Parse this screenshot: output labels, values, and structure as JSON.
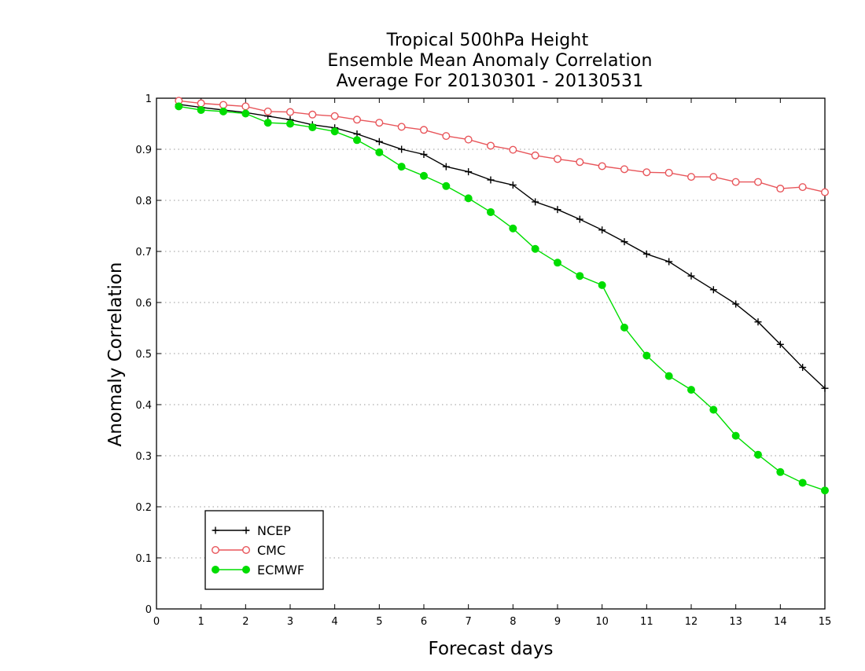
{
  "chart_data": {
    "type": "line",
    "title_lines": [
      "Tropical 500hPa Height",
      "Ensemble Mean Anomaly Correlation",
      "Average For 20130301 - 20130531"
    ],
    "xlabel": "Forecast days",
    "ylabel": "Anomaly Correlation",
    "xlim": [
      0,
      15
    ],
    "ylim": [
      0,
      1
    ],
    "xticks": [
      0,
      1,
      2,
      3,
      4,
      5,
      6,
      7,
      8,
      9,
      10,
      11,
      12,
      13,
      14,
      15
    ],
    "yticks": [
      0,
      0.1,
      0.2,
      0.3,
      0.4,
      0.5,
      0.6,
      0.7,
      0.8,
      0.9,
      1
    ],
    "ytick_labels": [
      "0",
      "0.1",
      "0.2",
      "0.3",
      "0.4",
      "0.5",
      "0.6",
      "0.7",
      "0.8",
      "0.9",
      "1"
    ],
    "grid": "horizontal dotted",
    "legend_position": "lower-left",
    "x": [
      0.5,
      1,
      1.5,
      2,
      2.5,
      3,
      3.5,
      4,
      4.5,
      5,
      5.5,
      6,
      6.5,
      7,
      7.5,
      8,
      8.5,
      9,
      9.5,
      10,
      10.5,
      11,
      11.5,
      12,
      12.5,
      13,
      13.5,
      14,
      14.5,
      15
    ],
    "series": [
      {
        "name": "NCEP",
        "color": "#000000",
        "marker": "plus",
        "values": [
          0.988,
          0.982,
          0.977,
          0.972,
          0.965,
          0.958,
          0.948,
          0.942,
          0.93,
          0.915,
          0.9,
          0.89,
          0.866,
          0.856,
          0.84,
          0.83,
          0.797,
          0.782,
          0.763,
          0.742,
          0.719,
          0.695,
          0.68,
          0.652,
          0.625,
          0.597,
          0.562,
          0.518,
          0.473,
          0.432
        ]
      },
      {
        "name": "CMC",
        "color": "#e8555a",
        "marker": "open-circle",
        "values": [
          0.995,
          0.99,
          0.987,
          0.984,
          0.974,
          0.973,
          0.968,
          0.965,
          0.958,
          0.952,
          0.944,
          0.938,
          0.926,
          0.919,
          0.907,
          0.899,
          0.888,
          0.881,
          0.875,
          0.867,
          0.861,
          0.855,
          0.854,
          0.846,
          0.846,
          0.836,
          0.836,
          0.823,
          0.826,
          0.816
        ]
      },
      {
        "name": "ECMWF",
        "color": "#00dd00",
        "marker": "filled-circle",
        "values": [
          0.984,
          0.977,
          0.974,
          0.97,
          0.952,
          0.95,
          0.943,
          0.935,
          0.918,
          0.894,
          0.866,
          0.848,
          0.828,
          0.804,
          0.777,
          0.745,
          0.705,
          0.678,
          0.652,
          0.634,
          0.551,
          0.496,
          0.456,
          0.429,
          0.39,
          0.339,
          0.302,
          0.268,
          0.247,
          0.232
        ]
      }
    ]
  }
}
